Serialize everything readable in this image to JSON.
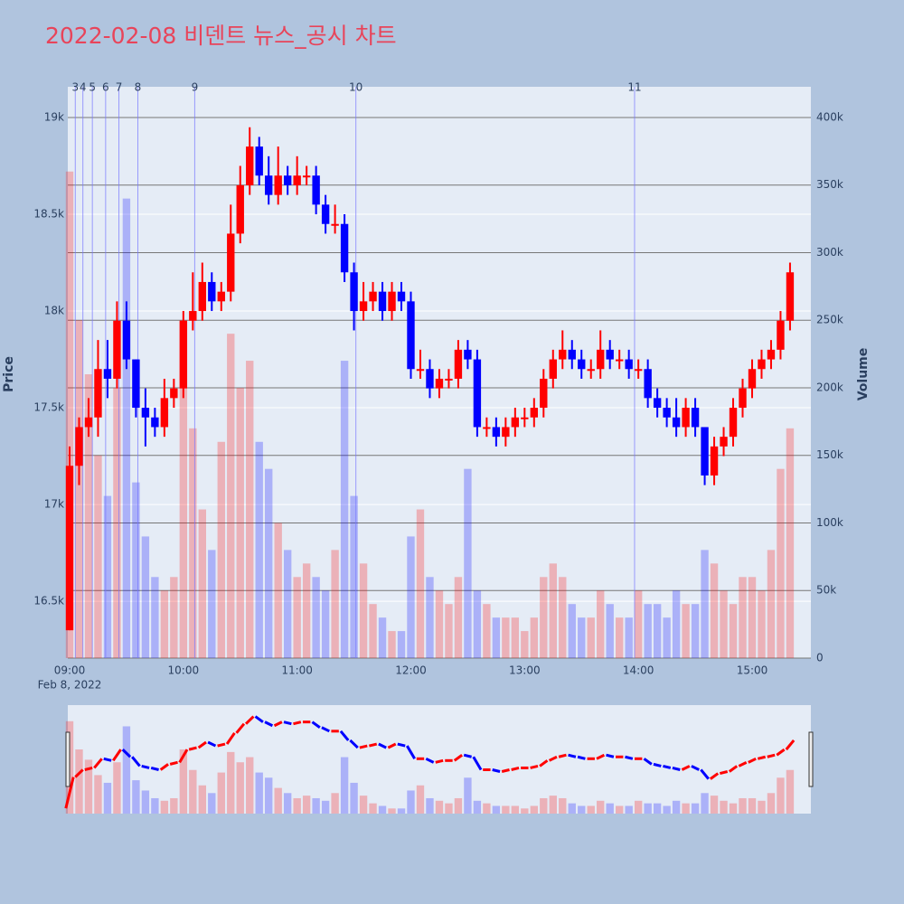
{
  "chart_data": {
    "type": "candlestick",
    "title": "2022-02-08 비덴트 뉴스_공시 차트",
    "date_label": "Feb 8, 2022",
    "y_label": "Price",
    "y2_label": "Volume",
    "increasing_color": "#ff0000",
    "decreasing_color": "#0000ff",
    "news_color": "#7777ff",
    "x": [
      "09:00",
      "09:05",
      "09:10",
      "09:15",
      "09:20",
      "09:25",
      "09:30",
      "09:35",
      "09:40",
      "09:45",
      "09:50",
      "09:55",
      "10:00",
      "10:05",
      "10:10",
      "10:15",
      "10:20",
      "10:25",
      "10:30",
      "10:35",
      "10:40",
      "10:45",
      "10:50",
      "10:55",
      "11:00",
      "11:05",
      "11:10",
      "11:15",
      "11:20",
      "11:25",
      "11:30",
      "11:35",
      "11:40",
      "11:45",
      "11:50",
      "11:55",
      "12:00",
      "12:05",
      "12:10",
      "12:15",
      "12:20",
      "12:25",
      "12:30",
      "12:35",
      "12:40",
      "12:45",
      "12:50",
      "12:55",
      "13:00",
      "13:05",
      "13:10",
      "13:15",
      "13:20",
      "13:25",
      "13:30",
      "13:35",
      "13:40",
      "13:45",
      "13:50",
      "13:55",
      "14:00",
      "14:05",
      "14:10",
      "14:15",
      "14:20",
      "14:25",
      "14:30",
      "14:35",
      "14:40",
      "14:45",
      "14:50",
      "14:55",
      "15:00",
      "15:05",
      "15:10",
      "15:15",
      "15:20"
    ],
    "open": [
      16350,
      17200,
      17400,
      17450,
      17700,
      17650,
      17950,
      17750,
      17500,
      17450,
      17400,
      17550,
      17600,
      17950,
      18000,
      18150,
      18050,
      18100,
      18400,
      18650,
      18850,
      18700,
      18600,
      18700,
      18650,
      18700,
      18700,
      18550,
      18450,
      18450,
      18200,
      18000,
      18050,
      18100,
      18000,
      18100,
      18050,
      17700,
      17700,
      17600,
      17650,
      17650,
      17800,
      17750,
      17400,
      17400,
      17350,
      17400,
      17450,
      17450,
      17500,
      17650,
      17750,
      17800,
      17750,
      17700,
      17700,
      17800,
      17750,
      17750,
      17700,
      17700,
      17550,
      17500,
      17450,
      17400,
      17500,
      17400,
      17150,
      17300,
      17350,
      17500,
      17600,
      17700,
      17750,
      17800,
      17950
    ],
    "high": [
      17300,
      17450,
      17550,
      17850,
      17850,
      18050,
      18050,
      17750,
      17600,
      17500,
      17650,
      17650,
      18000,
      18200,
      18250,
      18200,
      18150,
      18550,
      18750,
      18950,
      18900,
      18800,
      18850,
      18750,
      18800,
      18750,
      18750,
      18600,
      18550,
      18500,
      18250,
      18150,
      18150,
      18150,
      18150,
      18150,
      18100,
      17800,
      17750,
      17700,
      17700,
      17850,
      17850,
      17800,
      17450,
      17450,
      17450,
      17500,
      17500,
      17550,
      17700,
      17800,
      17900,
      17850,
      17800,
      17750,
      17900,
      17850,
      17800,
      17800,
      17750,
      17750,
      17600,
      17550,
      17550,
      17550,
      17550,
      17400,
      17350,
      17400,
      17550,
      17650,
      17750,
      17800,
      17850,
      18000,
      18250
    ],
    "low": [
      16350,
      17100,
      17350,
      17350,
      17550,
      17600,
      17700,
      17450,
      17300,
      17350,
      17350,
      17500,
      17550,
      17900,
      17950,
      18000,
      18000,
      18050,
      18350,
      18600,
      18650,
      18550,
      18550,
      18600,
      18600,
      18650,
      18500,
      18400,
      18400,
      18150,
      17900,
      17950,
      18000,
      17950,
      17950,
      18000,
      17650,
      17650,
      17550,
      17550,
      17600,
      17600,
      17700,
      17350,
      17350,
      17300,
      17300,
      17350,
      17400,
      17400,
      17450,
      17600,
      17700,
      17700,
      17650,
      17650,
      17650,
      17700,
      17700,
      17650,
      17650,
      17500,
      17450,
      17400,
      17350,
      17350,
      17350,
      17100,
      17100,
      17250,
      17300,
      17450,
      17550,
      17650,
      17700,
      17750,
      17900
    ],
    "close": [
      17200,
      17400,
      17450,
      17700,
      17650,
      17950,
      17750,
      17500,
      17450,
      17400,
      17550,
      17600,
      17950,
      18000,
      18150,
      18050,
      18100,
      18400,
      18650,
      18850,
      18700,
      18600,
      18700,
      18650,
      18700,
      18700,
      18550,
      18450,
      18450,
      18200,
      18000,
      18050,
      18100,
      18000,
      18100,
      18050,
      17700,
      17700,
      17600,
      17650,
      17650,
      17800,
      17750,
      17400,
      17400,
      17350,
      17400,
      17450,
      17450,
      17500,
      17650,
      17750,
      17800,
      17750,
      17700,
      17700,
      17800,
      17750,
      17750,
      17700,
      17700,
      17550,
      17500,
      17450,
      17400,
      17500,
      17400,
      17150,
      17300,
      17350,
      17500,
      17600,
      17700,
      17750,
      17800,
      17950,
      18200
    ],
    "volume": [
      360000,
      250000,
      210000,
      150000,
      120000,
      200000,
      340000,
      130000,
      90000,
      60000,
      50000,
      60000,
      250000,
      170000,
      110000,
      80000,
      160000,
      240000,
      200000,
      220000,
      160000,
      140000,
      100000,
      80000,
      60000,
      70000,
      60000,
      50000,
      80000,
      220000,
      120000,
      70000,
      40000,
      30000,
      20000,
      20000,
      90000,
      110000,
      60000,
      50000,
      40000,
      60000,
      140000,
      50000,
      40000,
      30000,
      30000,
      30000,
      20000,
      30000,
      60000,
      70000,
      60000,
      40000,
      30000,
      30000,
      50000,
      40000,
      30000,
      30000,
      50000,
      40000,
      40000,
      30000,
      50000,
      40000,
      40000,
      80000,
      70000,
      50000,
      40000,
      60000,
      60000,
      50000,
      80000,
      140000,
      170000
    ],
    "news": [
      {
        "label": "3",
        "x": "09:03"
      },
      {
        "label": "4",
        "x": "09:07"
      },
      {
        "label": "5",
        "x": "09:12"
      },
      {
        "label": "6",
        "x": "09:19"
      },
      {
        "label": "7",
        "x": "09:26"
      },
      {
        "label": "8",
        "x": "09:36"
      },
      {
        "label": "9",
        "x": "10:06"
      },
      {
        "label": "10",
        "x": "11:31"
      },
      {
        "label": "11",
        "x": "13:58"
      }
    ],
    "xlim": [
      "09:00",
      "15:31"
    ],
    "xticks": [
      "09:00",
      "10:00",
      "11:00",
      "12:00",
      "13:00",
      "14:00",
      "15:00"
    ],
    "ylim": [
      16206,
      19159
    ],
    "yticks": [
      {
        "value": 16500,
        "label": "16.5k"
      },
      {
        "value": 17000,
        "label": "17k"
      },
      {
        "value": 17500,
        "label": "17.5k"
      },
      {
        "value": 18000,
        "label": "18k"
      },
      {
        "value": 18500,
        "label": "18.5k"
      },
      {
        "value": 19000,
        "label": "19k"
      }
    ],
    "y2lim": [
      0,
      422700
    ],
    "y2ticks": [
      0,
      {
        "value": 50000,
        "label": "50k"
      },
      {
        "value": 100000,
        "label": "100k"
      },
      {
        "value": 150000,
        "label": "150k"
      },
      {
        "value": 200000,
        "label": "200k"
      },
      {
        "value": 250000,
        "label": "250k"
      },
      {
        "value": 300000,
        "label": "300k"
      },
      {
        "value": 350000,
        "label": "350k"
      },
      {
        "value": 400000,
        "label": "400k"
      }
    ]
  }
}
